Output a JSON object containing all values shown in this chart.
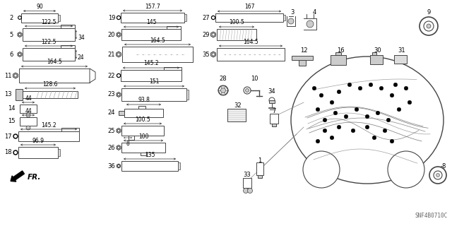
{
  "bg_color": "#ffffff",
  "line_color": "#444444",
  "dim_color": "#333333",
  "code": "SNF4B0710C",
  "fr_arrow": true
}
